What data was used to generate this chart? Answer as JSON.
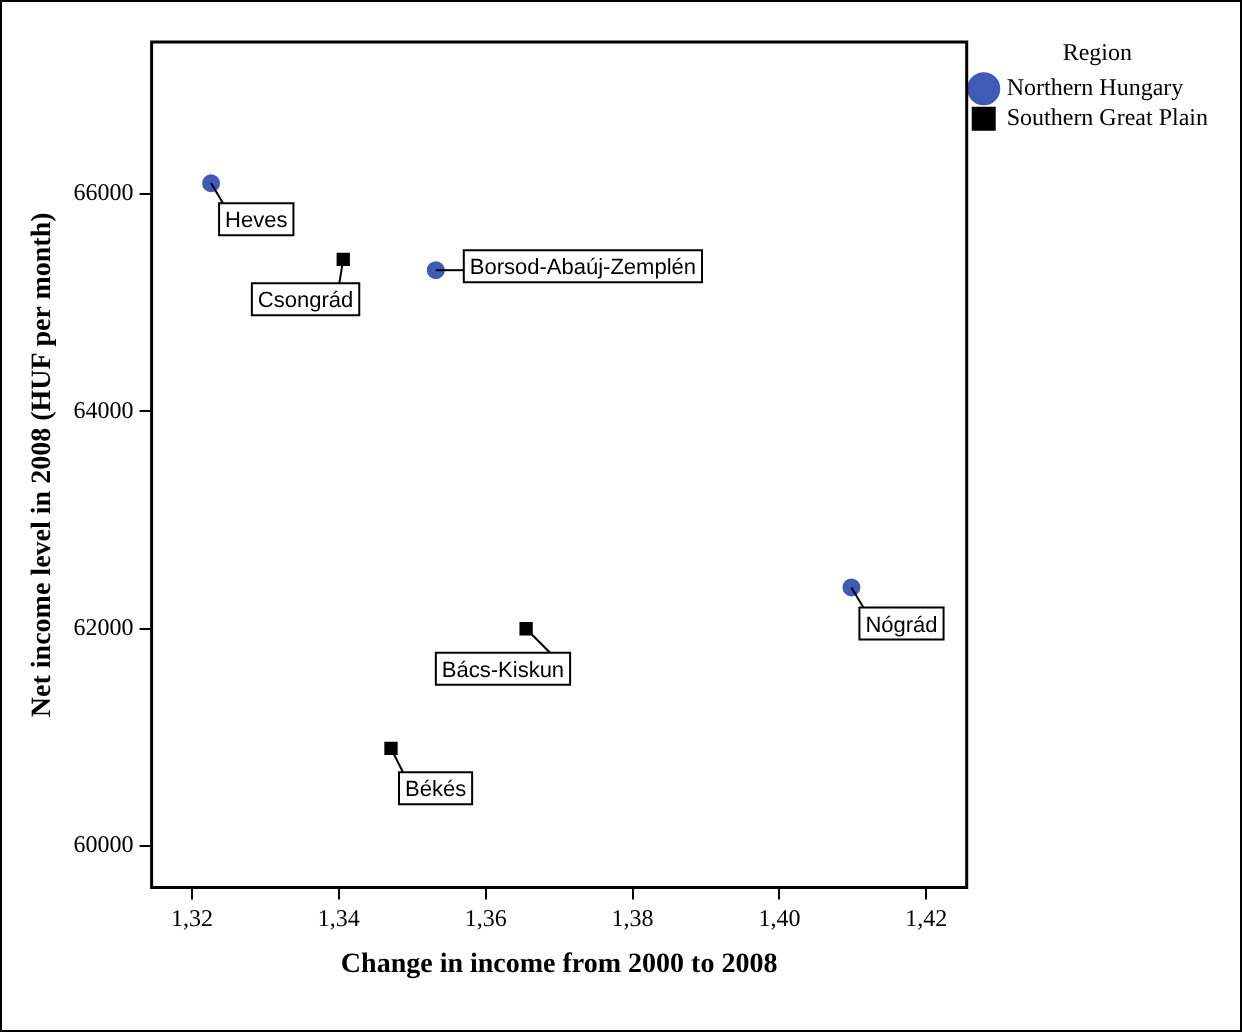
{
  "chart_data": {
    "type": "scatter",
    "xlabel": "Change in income from 2000 to 2008",
    "ylabel": "Net income level in 2008 (HUF per month)",
    "legend_title": "Region",
    "legend": "top right",
    "grid": false,
    "xlim": [
      1.3145,
      1.4255
    ],
    "ylim": [
      59618,
      67400
    ],
    "xticks": [
      {
        "value": 1.32,
        "label": "1,32"
      },
      {
        "value": 1.34,
        "label": "1,34"
      },
      {
        "value": 1.36,
        "label": "1,36"
      },
      {
        "value": 1.38,
        "label": "1,38"
      },
      {
        "value": 1.4,
        "label": "1,40"
      },
      {
        "value": 1.42,
        "label": "1,42"
      }
    ],
    "yticks": [
      60000,
      62000,
      64000,
      66000
    ],
    "series": [
      {
        "name": "Northern Hungary",
        "color": "#3f5bb5",
        "marker": "circle",
        "x": [
          1.3226,
          1.3532,
          1.4098
        ],
        "values": [
          66100,
          65300,
          62380
        ]
      },
      {
        "name": "Southern Great Plain",
        "color": "#000000",
        "marker": "square",
        "x": [
          1.3406,
          1.3655,
          1.3471
        ],
        "values": [
          65400,
          62000,
          60900
        ]
      }
    ],
    "annotations": [
      {
        "text": "Heves",
        "x": 1.3226,
        "y": 66100
      },
      {
        "text": "Borsod-Abaúj-Zemplén",
        "x": 1.3532,
        "y": 65300
      },
      {
        "text": "Nógrád",
        "x": 1.4098,
        "y": 62380
      },
      {
        "text": "Csongrád",
        "x": 1.3406,
        "y": 65400
      },
      {
        "text": "Bács-Kiskun",
        "x": 1.3655,
        "y": 62000
      },
      {
        "text": "Békés",
        "x": 1.3471,
        "y": 60900
      }
    ]
  }
}
